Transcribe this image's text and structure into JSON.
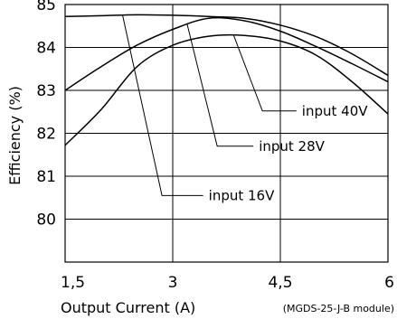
{
  "chart_data": {
    "type": "line",
    "title": "",
    "xlabel": "Output Current (A)",
    "ylabel": "Efficiency (%)",
    "xlim": [
      1.5,
      6
    ],
    "ylim": [
      79,
      85
    ],
    "xticks": [
      1.5,
      3,
      4.5,
      6
    ],
    "xtick_labels": [
      "1,5",
      "3",
      "4,5",
      "6"
    ],
    "yticks": [
      80,
      81,
      82,
      83,
      84,
      85
    ],
    "ytick_labels": [
      "80",
      "81",
      "82",
      "83",
      "84",
      "85"
    ],
    "grid": true,
    "footnote": "(MGDS-25-J-B module)",
    "series": [
      {
        "name": "input 16V",
        "x": [
          1.5,
          2.0,
          2.5,
          3.0,
          3.5,
          4.0,
          4.5,
          5.0,
          5.5,
          6.0
        ],
        "y": [
          84.72,
          84.74,
          84.76,
          84.75,
          84.72,
          84.68,
          84.52,
          84.25,
          83.85,
          83.35
        ]
      },
      {
        "name": "input 28V",
        "x": [
          1.5,
          2.0,
          2.5,
          3.0,
          3.5,
          4.0,
          4.5,
          5.0,
          5.5,
          6.0
        ],
        "y": [
          83.0,
          83.55,
          84.05,
          84.42,
          84.68,
          84.62,
          84.38,
          84.02,
          83.62,
          83.2
        ]
      },
      {
        "name": "input 40V",
        "x": [
          1.5,
          2.0,
          2.5,
          3.0,
          3.5,
          4.0,
          4.5,
          5.0,
          5.5,
          6.0
        ],
        "y": [
          81.72,
          82.55,
          83.55,
          84.05,
          84.26,
          84.28,
          84.15,
          83.82,
          83.2,
          82.45
        ]
      }
    ],
    "annotations": [
      {
        "text": "input 40V",
        "series": "input 40V",
        "from": [
          3.85,
          84.28
        ],
        "elbow": [
          4.25,
          82.52
        ],
        "label_at": [
          4.8,
          82.52
        ]
      },
      {
        "text": "input 28V",
        "series": "input 28V",
        "from": [
          3.2,
          84.55
        ],
        "elbow": [
          3.62,
          81.7
        ],
        "label_at": [
          4.2,
          81.7
        ]
      },
      {
        "text": "input 16V",
        "series": "input 16V",
        "from": [
          2.3,
          84.76
        ],
        "elbow": [
          2.85,
          80.55
        ],
        "label_at": [
          3.5,
          80.55
        ]
      }
    ]
  }
}
